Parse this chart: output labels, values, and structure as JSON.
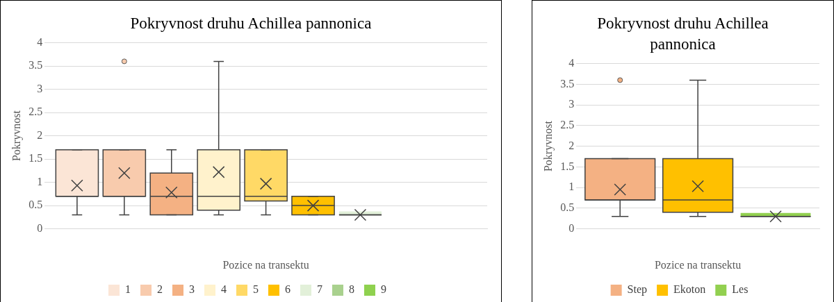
{
  "chart_data": [
    {
      "type": "box",
      "title": "Pokryvnost druhu Achillea pannonica",
      "xlabel": "Pozice na transektu",
      "ylabel": "Pokryvnost",
      "categories": [
        null
      ],
      "ylim": [
        0,
        4
      ],
      "yticks": [
        0,
        0.5,
        1,
        1.5,
        2,
        2.5,
        3,
        3.5,
        4
      ],
      "grid": "y",
      "legend": "bottom",
      "series": [
        {
          "name": "1",
          "color": "#fbe5d6",
          "boxes": [
            {
              "low": 0.3,
              "q1": 0.7,
              "median": 0.7,
              "q3": 1.7,
              "high": 1.7,
              "mean": 0.93
            }
          ]
        },
        {
          "name": "2",
          "color": "#f8cbad",
          "boxes": [
            {
              "low": 0.3,
              "q1": 0.7,
              "median": 0.7,
              "q3": 1.7,
              "high": 1.7,
              "mean": 1.2,
              "outliers": [
                3.6
              ]
            }
          ]
        },
        {
          "name": "3",
          "color": "#f4b183",
          "boxes": [
            {
              "low": 0.3,
              "q1": 0.3,
              "median": 0.7,
              "q3": 1.2,
              "high": 1.7,
              "mean": 0.78
            }
          ]
        },
        {
          "name": "4",
          "color": "#fff2cc",
          "boxes": [
            {
              "low": 0.3,
              "q1": 0.4,
              "median": 0.7,
              "q3": 1.7,
              "high": 3.6,
              "mean": 1.22
            }
          ]
        },
        {
          "name": "5",
          "color": "#ffd966",
          "boxes": [
            {
              "low": 0.3,
              "q1": 0.6,
              "median": 0.7,
              "q3": 1.7,
              "high": 1.7,
              "mean": 0.97
            }
          ]
        },
        {
          "name": "6",
          "color": "#ffc000",
          "boxes": [
            {
              "low": 0.3,
              "q1": 0.3,
              "median": 0.5,
              "q3": 0.7,
              "high": 0.7,
              "mean": 0.5
            }
          ]
        },
        {
          "name": "7",
          "color": "#e2f0d9",
          "boxes": [
            {
              "low": 0.3,
              "q1": 0.3,
              "median": 0.3,
              "q3": 0.3,
              "high": 0.3,
              "mean": 0.3
            }
          ]
        },
        {
          "name": "8",
          "color": "#a9d18e",
          "boxes": [
            null
          ]
        },
        {
          "name": "9",
          "color": "#8fd14f",
          "boxes": [
            null
          ]
        }
      ]
    },
    {
      "type": "box",
      "title": "Pokryvnost druhu Achillea pannonica",
      "xlabel": "Pozice na transektu",
      "ylabel": "Pokryvnost",
      "categories": [
        null
      ],
      "ylim": [
        0,
        4
      ],
      "yticks": [
        0,
        0.5,
        1,
        1.5,
        2,
        2.5,
        3,
        3.5,
        4
      ],
      "grid": "y",
      "legend": "bottom",
      "series": [
        {
          "name": "Step",
          "color": "#f4b183",
          "boxes": [
            {
              "low": 0.3,
              "q1": 0.7,
              "median": 0.7,
              "q3": 1.7,
              "high": 1.7,
              "mean": 0.95,
              "outliers": [
                3.6
              ]
            }
          ]
        },
        {
          "name": "Ekoton",
          "color": "#ffc000",
          "boxes": [
            {
              "low": 0.3,
              "q1": 0.4,
              "median": 0.7,
              "q3": 1.7,
              "high": 3.6,
              "mean": 1.03
            }
          ]
        },
        {
          "name": "Les",
          "color": "#92d050",
          "boxes": [
            {
              "low": 0.3,
              "q1": 0.3,
              "median": 0.3,
              "q3": 0.3,
              "high": 0.3,
              "mean": 0.3
            }
          ]
        }
      ]
    }
  ]
}
